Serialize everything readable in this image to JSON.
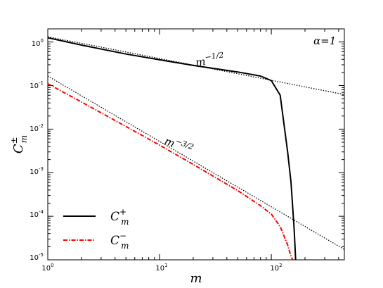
{
  "chart_data": {
    "type": "line",
    "xscale": "log",
    "yscale": "log",
    "xlim": [
      1,
      450
    ],
    "ylim": [
      1e-05,
      2
    ],
    "xlabel": "m",
    "ylabel": "C",
    "ylabel_sup": "±",
    "ylabel_sub": "m",
    "xticks": [
      {
        "base": "10",
        "exp": "0"
      },
      {
        "base": "10",
        "exp": "1"
      },
      {
        "base": "10",
        "exp": "2"
      }
    ],
    "yticks": [
      {
        "base": "10",
        "exp": "0"
      },
      {
        "base": "10",
        "exp": "-1"
      },
      {
        "base": "10",
        "exp": "-2"
      },
      {
        "base": "10",
        "exp": "-3"
      },
      {
        "base": "10",
        "exp": "-4"
      },
      {
        "base": "10",
        "exp": "-5"
      }
    ],
    "annotations": {
      "alpha": {
        "text": "α=1"
      },
      "slope1": {
        "base": "m",
        "exp": "−1/2"
      },
      "slope3": {
        "base": "m",
        "exp": "−3/2"
      }
    },
    "grid": false,
    "legend_position": "lower-left",
    "series": [
      {
        "name_base": "C",
        "name_sup": "+",
        "name_sub": "m",
        "color": "#000000",
        "style": "solid",
        "x": [
          1,
          2,
          5,
          10,
          20,
          50,
          80,
          100,
          120,
          140,
          150,
          160,
          165
        ],
        "y": [
          1.25,
          0.85,
          0.53,
          0.39,
          0.29,
          0.205,
          0.165,
          0.13,
          0.06,
          0.003,
          0.0006,
          5e-05,
          1e-05
        ]
      },
      {
        "name_base": "C",
        "name_sup": "−",
        "name_sub": "m",
        "color": "#ff0000",
        "style": "dashdot",
        "x": [
          1,
          2,
          5,
          10,
          20,
          50,
          80,
          100,
          120,
          140,
          150,
          155
        ],
        "y": [
          0.11,
          0.042,
          0.0115,
          0.0043,
          0.00155,
          0.00039,
          0.000175,
          0.000112,
          5.8e-05,
          2.2e-05,
          1.2e-05,
          1e-05
        ]
      }
    ],
    "reference_lines": [
      {
        "slope": -0.5,
        "intercept": 1.32,
        "color": "#000000",
        "style": "dotted"
      },
      {
        "slope": -1.5,
        "intercept": 0.165,
        "color": "#000000",
        "style": "dotted"
      }
    ]
  }
}
